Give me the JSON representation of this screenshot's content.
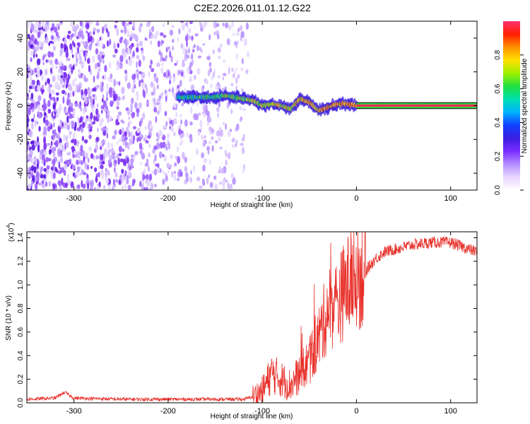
{
  "title": "C2E2.2026.011.01.12.G22",
  "colors": {
    "snr_line": "#e8302a",
    "axis": "#000000",
    "background": "#ffffff",
    "colorbar_stops": [
      "#ffffff",
      "#e8d6ff",
      "#b48cff",
      "#7a2cff",
      "#3a1ee0",
      "#1040ff",
      "#00b4ff",
      "#00e0b0",
      "#20e040",
      "#a0f000",
      "#ffe000",
      "#ff9000",
      "#ff2000",
      "#ff3070"
    ]
  },
  "chart_data": [
    {
      "type": "heatmap",
      "name": "spectrogram",
      "xlabel": "Height of straight line (km)",
      "ylabel": "Frequency (Hz)",
      "xlim": [
        -350,
        128
      ],
      "ylim": [
        -50,
        50
      ],
      "xticks": [
        -300,
        -200,
        -100,
        0,
        100
      ],
      "yticks": [
        -40,
        -20,
        0,
        20,
        40
      ],
      "grid": false,
      "noise_region_x": [
        -350,
        -115
      ],
      "signal_track": [
        {
          "x": -190,
          "y": 5
        },
        {
          "x": -180,
          "y": 5
        },
        {
          "x": -170,
          "y": 5
        },
        {
          "x": -160,
          "y": 5
        },
        {
          "x": -150,
          "y": 5
        },
        {
          "x": -140,
          "y": 6
        },
        {
          "x": -130,
          "y": 5
        },
        {
          "x": -120,
          "y": 4
        },
        {
          "x": -110,
          "y": 3
        },
        {
          "x": -100,
          "y": 0
        },
        {
          "x": -90,
          "y": 1
        },
        {
          "x": -80,
          "y": 0
        },
        {
          "x": -70,
          "y": -2
        },
        {
          "x": -60,
          "y": 4
        },
        {
          "x": -50,
          "y": 2
        },
        {
          "x": -40,
          "y": -3
        },
        {
          "x": -30,
          "y": -1
        },
        {
          "x": -20,
          "y": 1
        },
        {
          "x": -10,
          "y": 1
        },
        {
          "x": 0,
          "y": 0
        },
        {
          "x": 20,
          "y": 0
        },
        {
          "x": 60,
          "y": 0
        },
        {
          "x": 100,
          "y": 0
        },
        {
          "x": 128,
          "y": 0
        }
      ],
      "colorbar": {
        "label": "Normalized spectral amplitude",
        "range": [
          0,
          1
        ],
        "ticks": [
          "0.0",
          "0.2",
          "0.4",
          "0.6",
          "0.8"
        ]
      }
    },
    {
      "type": "line",
      "name": "snr",
      "xlabel": "Height of straight line (km)",
      "ylabel": "SNR (10 * v/v)",
      "y_multiplier_label": "(x10",
      "y_multiplier_exp": "4",
      "xlim": [
        -350,
        128
      ],
      "ylim": [
        0,
        1.45
      ],
      "xticks": [
        -300,
        -200,
        -100,
        0,
        100
      ],
      "yticks": [
        "0.0",
        "0.2",
        "0.4",
        "0.6",
        "0.8",
        "1.0",
        "1.2",
        "1.4"
      ],
      "grid": false,
      "trend": [
        [
          -350,
          0.03
        ],
        [
          -320,
          0.04
        ],
        [
          -310,
          0.09
        ],
        [
          -300,
          0.04
        ],
        [
          -250,
          0.03
        ],
        [
          -200,
          0.03
        ],
        [
          -150,
          0.03
        ],
        [
          -120,
          0.03
        ],
        [
          -110,
          0.05
        ],
        [
          -100,
          0.1
        ],
        [
          -90,
          0.25
        ],
        [
          -80,
          0.2
        ],
        [
          -70,
          0.15
        ],
        [
          -60,
          0.25
        ],
        [
          -50,
          0.35
        ],
        [
          -40,
          0.55
        ],
        [
          -30,
          0.8
        ],
        [
          -20,
          0.85
        ],
        [
          -10,
          1.0
        ],
        [
          0,
          1.05
        ],
        [
          10,
          1.12
        ],
        [
          20,
          1.22
        ],
        [
          30,
          1.28
        ],
        [
          40,
          1.3
        ],
        [
          60,
          1.34
        ],
        [
          80,
          1.36
        ],
        [
          100,
          1.36
        ],
        [
          110,
          1.33
        ],
        [
          120,
          1.3
        ],
        [
          128,
          1.28
        ]
      ]
    }
  ]
}
